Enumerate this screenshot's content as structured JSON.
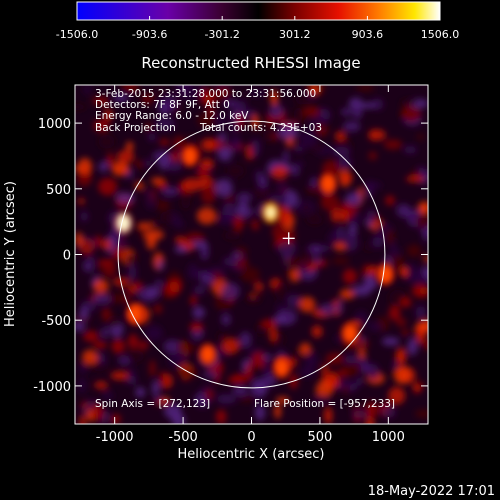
{
  "chart_data": {
    "type": "heatmap",
    "title": "Reconstructed RHESSI Image",
    "xlabel": "Heliocentric X (arcsec)",
    "ylabel": "Heliocentric Y (arcsec)",
    "xlim": [
      -1290,
      1290
    ],
    "ylim": [
      -1290,
      1290
    ],
    "x_ticks": [
      -1000,
      -500,
      0,
      500,
      1000
    ],
    "y_ticks": [
      -1000,
      -500,
      0,
      500,
      1000
    ],
    "colorbar": {
      "min": -1506.0,
      "max": 1506.0,
      "ticks": [
        -1506.0,
        -903.6,
        -301.2,
        301.2,
        903.6,
        1506.0
      ],
      "tick_labels": [
        "-1506.0",
        "-903.6",
        "-301.2",
        "301.2",
        "903.6",
        "1506.0"
      ],
      "colors": [
        "#0000ff",
        "#6a00a8",
        "#3a0030",
        "#000000",
        "#7a0000",
        "#e61000",
        "#ff7a00",
        "#ffe600",
        "#ffffff"
      ]
    },
    "solar_disk": {
      "center": [
        0,
        0
      ],
      "radius_arcsec": 975
    },
    "marker": {
      "symbol": "+",
      "x": 272,
      "y": 123
    },
    "hotspots": [
      {
        "x": -935,
        "y": 240,
        "value": 1506
      },
      {
        "x": 140,
        "y": 320,
        "value": 1300
      },
      {
        "x": 560,
        "y": 540,
        "value": 900
      },
      {
        "x": -850,
        "y": -450,
        "value": 900
      },
      {
        "x": 720,
        "y": -600,
        "value": 850
      },
      {
        "x": -450,
        "y": 750,
        "value": 800
      },
      {
        "x": 980,
        "y": -150,
        "value": 800
      },
      {
        "x": 220,
        "y": -860,
        "value": 750
      },
      {
        "x": -320,
        "y": -760,
        "value": 700
      }
    ],
    "annotations": {
      "line1": "3-Feb-2015 23:31:28.000 to 23:31:56.000",
      "line2": "Detectors: 7F 8F 9F, Att 0",
      "line3": "Energy Range: 6.0 - 12.0 keV",
      "line4_left": "Back Projection",
      "line4_right": "Total counts: 4.23E+03",
      "spin_axis": "Spin Axis = [272,123]",
      "flare_position": "Flare Position = [-957,233]"
    }
  },
  "footer": {
    "timestamp": "18-May-2022 17:01"
  }
}
